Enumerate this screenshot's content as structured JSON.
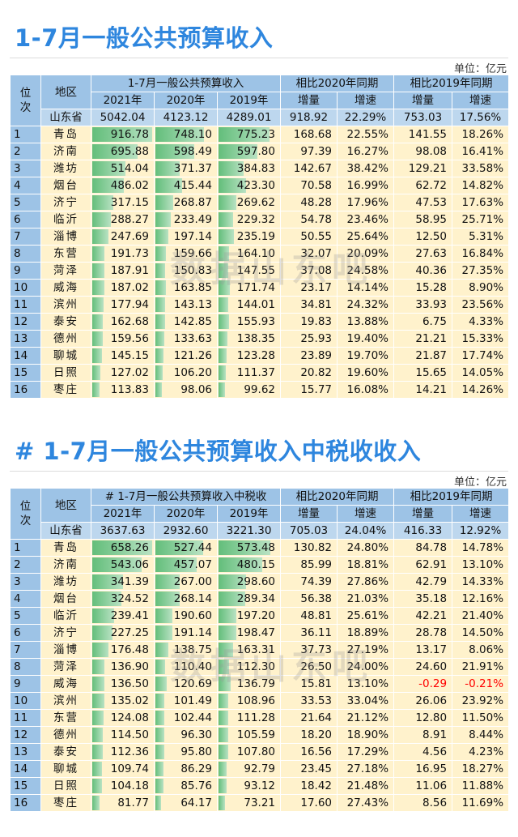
{
  "t1": {
    "title": "1-7月一般公共预算收入",
    "unit": "单位：亿元",
    "hdr_rank": "位次",
    "hdr_region": "地区",
    "hdr_group1": "1-7月一般公共预算收入",
    "hdr_group2": "相比2020年同期",
    "hdr_group3": "相比2019年同期",
    "col_2021": "2021年",
    "col_2020": "2020年",
    "col_2019": "2019年",
    "col_inc1": "增量",
    "col_rate1": "增速",
    "col_inc2": "增量",
    "col_rate2": "增速",
    "province": {
      "name": "山东省",
      "y2021": "5042.04",
      "y2020": "4123.12",
      "y2019": "4289.01",
      "inc20": "918.92",
      "rate20": "22.29%",
      "inc19": "753.03",
      "rate19": "17.56%"
    },
    "rows": [
      {
        "rank": "1",
        "region": "青岛",
        "y2021": "916.78",
        "y2020": "748.10",
        "y2019": "775.23",
        "inc20": "168.68",
        "rate20": "22.55%",
        "inc19": "141.55",
        "rate19": "18.26%"
      },
      {
        "rank": "2",
        "region": "济南",
        "y2021": "695.88",
        "y2020": "598.49",
        "y2019": "597.80",
        "inc20": "97.39",
        "rate20": "16.27%",
        "inc19": "98.08",
        "rate19": "16.41%"
      },
      {
        "rank": "3",
        "region": "潍坊",
        "y2021": "514.04",
        "y2020": "371.37",
        "y2019": "384.83",
        "inc20": "142.67",
        "rate20": "38.42%",
        "inc19": "129.21",
        "rate19": "33.58%"
      },
      {
        "rank": "4",
        "region": "烟台",
        "y2021": "486.02",
        "y2020": "415.44",
        "y2019": "423.30",
        "inc20": "70.58",
        "rate20": "16.99%",
        "inc19": "62.72",
        "rate19": "14.82%"
      },
      {
        "rank": "5",
        "region": "济宁",
        "y2021": "317.15",
        "y2020": "268.87",
        "y2019": "269.62",
        "inc20": "48.28",
        "rate20": "17.96%",
        "inc19": "47.53",
        "rate19": "17.63%"
      },
      {
        "rank": "6",
        "region": "临沂",
        "y2021": "288.27",
        "y2020": "233.49",
        "y2019": "229.32",
        "inc20": "54.78",
        "rate20": "23.46%",
        "inc19": "58.95",
        "rate19": "25.71%"
      },
      {
        "rank": "7",
        "region": "淄博",
        "y2021": "247.69",
        "y2020": "197.14",
        "y2019": "235.19",
        "inc20": "50.55",
        "rate20": "25.64%",
        "inc19": "12.50",
        "rate19": "5.31%"
      },
      {
        "rank": "8",
        "region": "东营",
        "y2021": "191.73",
        "y2020": "159.66",
        "y2019": "164.10",
        "inc20": "32.07",
        "rate20": "20.09%",
        "inc19": "27.63",
        "rate19": "16.84%"
      },
      {
        "rank": "9",
        "region": "菏泽",
        "y2021": "187.91",
        "y2020": "150.83",
        "y2019": "147.55",
        "inc20": "37.08",
        "rate20": "24.58%",
        "inc19": "40.36",
        "rate19": "27.35%"
      },
      {
        "rank": "10",
        "region": "威海",
        "y2021": "187.02",
        "y2020": "163.85",
        "y2019": "171.74",
        "inc20": "23.17",
        "rate20": "14.14%",
        "inc19": "15.28",
        "rate19": "8.90%"
      },
      {
        "rank": "11",
        "region": "滨州",
        "y2021": "177.94",
        "y2020": "143.13",
        "y2019": "144.01",
        "inc20": "34.81",
        "rate20": "24.32%",
        "inc19": "33.93",
        "rate19": "23.56%"
      },
      {
        "rank": "12",
        "region": "泰安",
        "y2021": "162.68",
        "y2020": "142.85",
        "y2019": "155.93",
        "inc20": "19.83",
        "rate20": "13.88%",
        "inc19": "6.75",
        "rate19": "4.33%"
      },
      {
        "rank": "13",
        "region": "德州",
        "y2021": "159.56",
        "y2020": "133.63",
        "y2019": "138.35",
        "inc20": "25.93",
        "rate20": "19.40%",
        "inc19": "21.21",
        "rate19": "15.33%"
      },
      {
        "rank": "14",
        "region": "聊城",
        "y2021": "145.15",
        "y2020": "121.26",
        "y2019": "123.28",
        "inc20": "23.89",
        "rate20": "19.70%",
        "inc19": "21.87",
        "rate19": "17.74%"
      },
      {
        "rank": "15",
        "region": "日照",
        "y2021": "127.02",
        "y2020": "106.20",
        "y2019": "111.37",
        "inc20": "20.82",
        "rate20": "19.60%",
        "inc19": "15.65",
        "rate19": "14.05%"
      },
      {
        "rank": "16",
        "region": "枣庄",
        "y2021": "113.83",
        "y2020": "98.06",
        "y2019": "99.62",
        "inc20": "15.77",
        "rate20": "16.08%",
        "inc19": "14.21",
        "rate19": "14.26%"
      }
    ]
  },
  "t2": {
    "title": "# 1-7月一般公共预算收入中税收收入",
    "unit": "单位：亿元",
    "hdr_rank": "位次",
    "hdr_region": "地区",
    "hdr_group1": "# 1-7月一般公共预算收入中税收",
    "hdr_group2": "相比2020年同期",
    "hdr_group3": "相比2019年同期",
    "col_2021": "2021年",
    "col_2020": "2020年",
    "col_2019": "2019年",
    "col_inc1": "增量",
    "col_rate1": "增速",
    "col_inc2": "增量",
    "col_rate2": "增速",
    "province": {
      "name": "山东省",
      "y2021": "3637.63",
      "y2020": "2932.60",
      "y2019": "3221.30",
      "inc20": "705.03",
      "rate20": "24.04%",
      "inc19": "416.33",
      "rate19": "12.92%"
    },
    "rows": [
      {
        "rank": "1",
        "region": "青岛",
        "y2021": "658.26",
        "y2020": "527.44",
        "y2019": "573.48",
        "inc20": "130.82",
        "rate20": "24.80%",
        "inc19": "84.78",
        "rate19": "14.78%"
      },
      {
        "rank": "2",
        "region": "济南",
        "y2021": "543.06",
        "y2020": "457.07",
        "y2019": "480.15",
        "inc20": "85.99",
        "rate20": "18.81%",
        "inc19": "62.91",
        "rate19": "13.10%"
      },
      {
        "rank": "3",
        "region": "潍坊",
        "y2021": "341.39",
        "y2020": "267.00",
        "y2019": "298.60",
        "inc20": "74.39",
        "rate20": "27.86%",
        "inc19": "42.79",
        "rate19": "14.33%"
      },
      {
        "rank": "4",
        "region": "烟台",
        "y2021": "324.52",
        "y2020": "268.14",
        "y2019": "289.34",
        "inc20": "56.38",
        "rate20": "21.03%",
        "inc19": "35.18",
        "rate19": "12.16%"
      },
      {
        "rank": "5",
        "region": "临沂",
        "y2021": "239.41",
        "y2020": "190.60",
        "y2019": "197.20",
        "inc20": "48.81",
        "rate20": "25.61%",
        "inc19": "42.21",
        "rate19": "21.40%"
      },
      {
        "rank": "6",
        "region": "济宁",
        "y2021": "227.25",
        "y2020": "191.14",
        "y2019": "198.47",
        "inc20": "36.11",
        "rate20": "18.89%",
        "inc19": "28.78",
        "rate19": "14.50%"
      },
      {
        "rank": "7",
        "region": "淄博",
        "y2021": "176.48",
        "y2020": "138.75",
        "y2019": "163.31",
        "inc20": "37.73",
        "rate20": "27.19%",
        "inc19": "13.17",
        "rate19": "8.06%"
      },
      {
        "rank": "8",
        "region": "菏泽",
        "y2021": "136.90",
        "y2020": "110.40",
        "y2019": "112.30",
        "inc20": "26.50",
        "rate20": "24.00%",
        "inc19": "24.60",
        "rate19": "21.91%"
      },
      {
        "rank": "9",
        "region": "威海",
        "y2021": "136.50",
        "y2020": "120.69",
        "y2019": "136.79",
        "inc20": "15.81",
        "rate20": "13.10%",
        "inc19": "-0.29",
        "rate19": "-0.21%"
      },
      {
        "rank": "10",
        "region": "滨州",
        "y2021": "135.02",
        "y2020": "101.49",
        "y2019": "108.96",
        "inc20": "33.53",
        "rate20": "33.04%",
        "inc19": "26.06",
        "rate19": "23.92%"
      },
      {
        "rank": "11",
        "region": "东营",
        "y2021": "124.08",
        "y2020": "102.44",
        "y2019": "111.28",
        "inc20": "21.64",
        "rate20": "21.12%",
        "inc19": "12.80",
        "rate19": "11.50%"
      },
      {
        "rank": "12",
        "region": "德州",
        "y2021": "114.50",
        "y2020": "96.30",
        "y2019": "105.59",
        "inc20": "18.20",
        "rate20": "18.90%",
        "inc19": "8.91",
        "rate19": "8.44%"
      },
      {
        "rank": "13",
        "region": "泰安",
        "y2021": "112.36",
        "y2020": "95.80",
        "y2019": "107.80",
        "inc20": "16.56",
        "rate20": "17.29%",
        "inc19": "4.56",
        "rate19": "4.23%"
      },
      {
        "rank": "14",
        "region": "聊城",
        "y2021": "109.74",
        "y2020": "86.29",
        "y2019": "92.79",
        "inc20": "23.45",
        "rate20": "27.18%",
        "inc19": "16.95",
        "rate19": "18.27%"
      },
      {
        "rank": "15",
        "region": "日照",
        "y2021": "104.18",
        "y2020": "85.76",
        "y2019": "93.12",
        "inc20": "18.42",
        "rate20": "21.48%",
        "inc19": "11.06",
        "rate19": "11.88%"
      },
      {
        "rank": "16",
        "region": "枣庄",
        "y2021": "81.77",
        "y2020": "64.17",
        "y2019": "73.21",
        "inc20": "17.60",
        "rate20": "27.43%",
        "inc19": "8.56",
        "rate19": "11.69%"
      }
    ]
  },
  "watermark": "数据山东吧",
  "colors": {
    "title": "#2e86de",
    "header": "#9dc3e6",
    "province": "#bdd7ee",
    "cell": "#fff2cc",
    "bar": "#63be7b",
    "negative": "#ff0000"
  }
}
